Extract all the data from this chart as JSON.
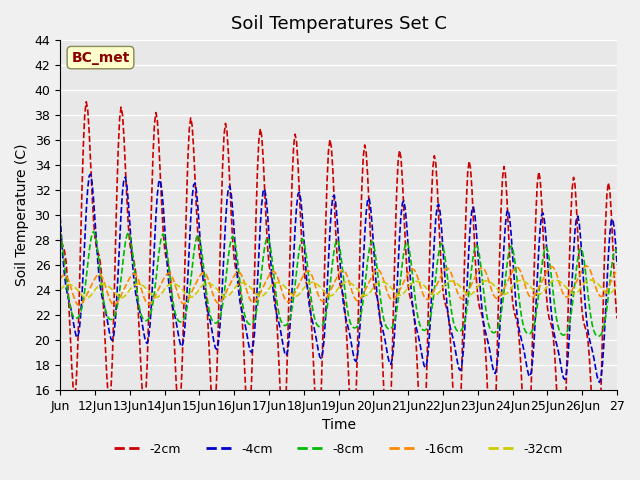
{
  "title": "Soil Temperatures Set C",
  "xlabel": "Time",
  "ylabel": "Soil Temperature (C)",
  "ylim": [
    16,
    44
  ],
  "annotation": "BC_met",
  "line_colors": {
    "-2cm": "#cc0000",
    "-4cm": "#0000cc",
    "-8cm": "#00bb00",
    "-16cm": "#ff8800",
    "-32cm": "#cccc00"
  },
  "legend_labels": [
    "-2cm",
    "-4cm",
    "-8cm",
    "-16cm",
    "-32cm"
  ],
  "title_fontsize": 13,
  "label_fontsize": 10,
  "tick_fontsize": 9,
  "xtick_labels": [
    "Jun",
    "12Jun",
    "13Jun",
    "14Jun",
    "15Jun",
    "16Jun",
    "17Jun",
    "18Jun",
    "19Jun",
    "20Jun",
    "21Jun",
    "22Jun",
    "23Jun",
    "24Jun",
    "25Jun",
    "26Jun",
    "27"
  ],
  "peak_hr": 14,
  "N_hours": 385
}
